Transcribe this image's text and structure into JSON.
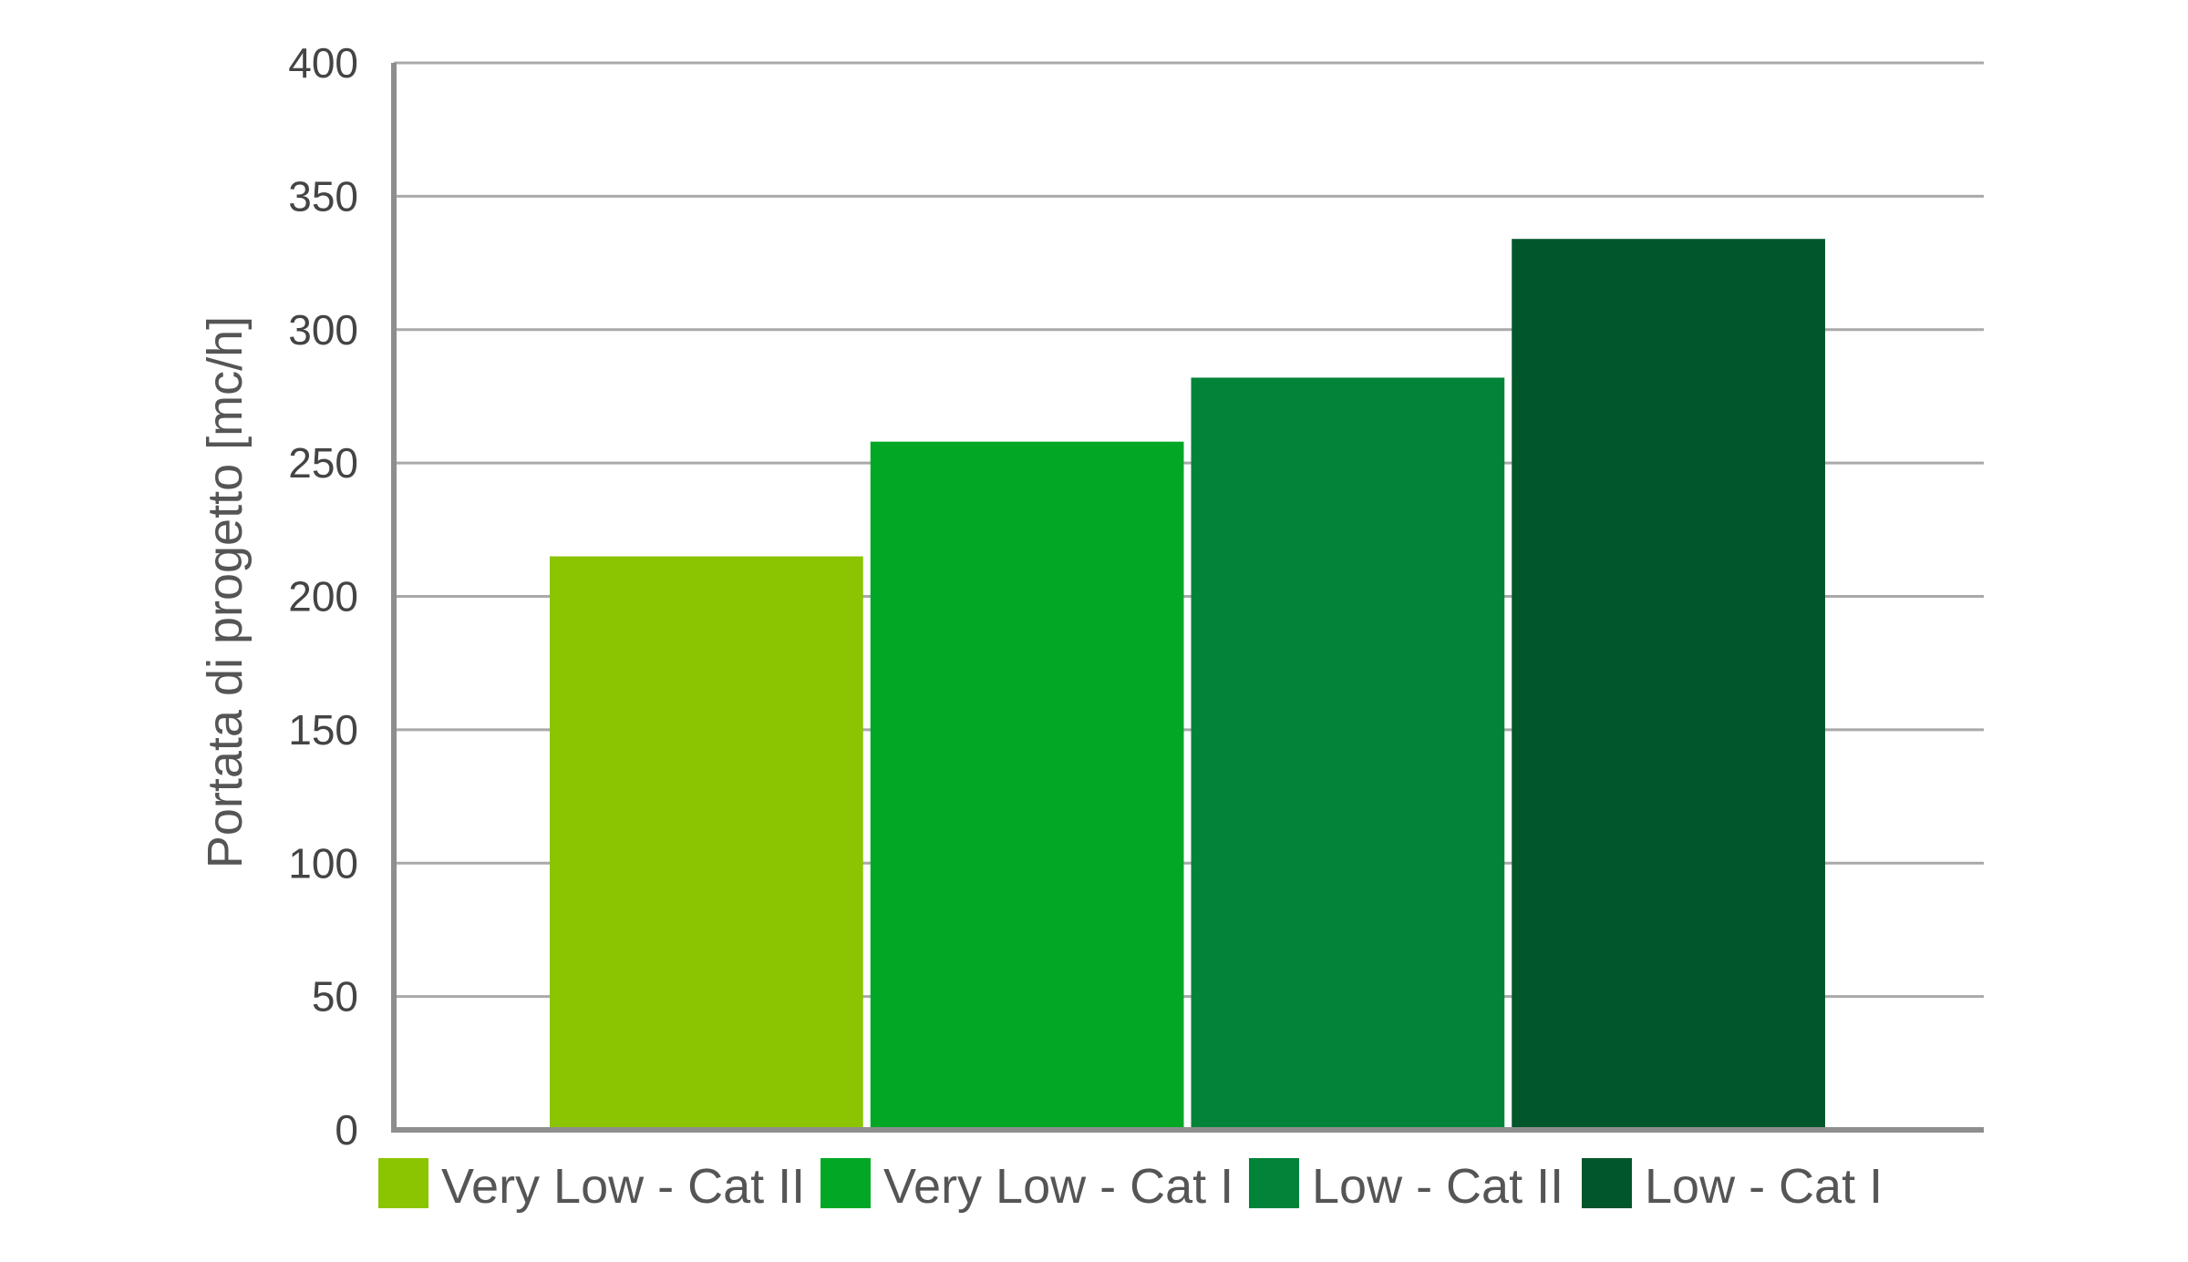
{
  "chart_data": {
    "type": "bar",
    "title": "",
    "xlabel": "",
    "ylabel": "Portata di progetto [mc/h]",
    "ylim": [
      0,
      400
    ],
    "yticks": [
      0,
      50,
      100,
      150,
      200,
      250,
      300,
      350,
      400
    ],
    "ytick_labels": [
      "0",
      "50",
      "100",
      "150",
      "200",
      "250",
      "300",
      "350",
      "400"
    ],
    "grid": true,
    "legend_position": "bottom",
    "categories": [
      "Very Low - Cat II",
      "Very Low - Cat I",
      "Low - Cat II",
      "Low - Cat I"
    ],
    "values": [
      215,
      258,
      282,
      334
    ],
    "colors": [
      "#8bc400",
      "#02a825",
      "#02833a",
      "#02562b"
    ],
    "grid_color": "#a9a9a9",
    "axis_color": "#8e8e8e"
  }
}
